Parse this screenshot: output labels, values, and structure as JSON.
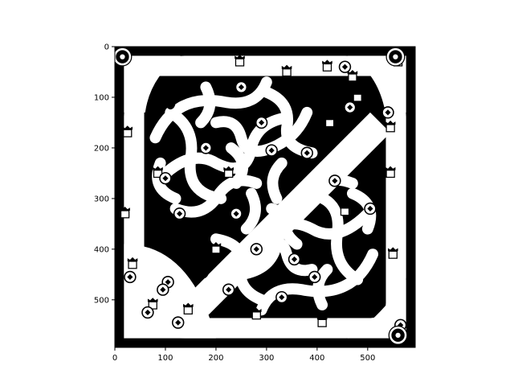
{
  "figure": {
    "type": "image-plot",
    "content": "binary (black/white) top-down game map: square arena with curved pathways and scattered game objects",
    "xlim": [
      0,
      594
    ],
    "ylim": [
      594,
      0
    ],
    "x_ticks": [
      0,
      100,
      200,
      300,
      400,
      500
    ],
    "y_ticks": [
      0,
      100,
      200,
      300,
      400,
      500
    ],
    "x_tick_labels": [
      "0",
      "100",
      "200",
      "300",
      "400",
      "500"
    ],
    "y_tick_labels": [
      "0",
      "100",
      "200",
      "300",
      "400",
      "500"
    ],
    "colors": {
      "background": "#000000",
      "foreground": "#ffffff",
      "axes": "#000000"
    }
  },
  "map_objects": {
    "towers": [
      [
        247,
        30
      ],
      [
        340,
        50
      ],
      [
        420,
        40
      ],
      [
        470,
        60
      ],
      [
        560,
        30
      ],
      [
        25,
        170
      ],
      [
        85,
        250
      ],
      [
        480,
        100
      ],
      [
        425,
        150
      ],
      [
        545,
        160
      ],
      [
        225,
        250
      ],
      [
        545,
        250
      ],
      [
        20,
        330
      ],
      [
        455,
        325
      ],
      [
        35,
        430
      ],
      [
        200,
        400
      ],
      [
        550,
        410
      ],
      [
        75,
        510
      ],
      [
        145,
        520
      ],
      [
        280,
        530
      ],
      [
        410,
        545
      ]
    ],
    "rings": [
      [
        455,
        40
      ],
      [
        465,
        120
      ],
      [
        540,
        130
      ],
      [
        100,
        260
      ],
      [
        128,
        330
      ],
      [
        180,
        200
      ],
      [
        250,
        80
      ],
      [
        290,
        150
      ],
      [
        310,
        205
      ],
      [
        240,
        330
      ],
      [
        380,
        210
      ],
      [
        435,
        265
      ],
      [
        505,
        320
      ],
      [
        280,
        400
      ],
      [
        355,
        420
      ],
      [
        395,
        455
      ],
      [
        225,
        480
      ],
      [
        330,
        495
      ],
      [
        30,
        455
      ],
      [
        105,
        465
      ],
      [
        65,
        525
      ],
      [
        95,
        480
      ],
      [
        125,
        545
      ],
      [
        565,
        550
      ]
    ],
    "flags": [
      [
        555,
        20
      ],
      [
        15,
        20
      ],
      [
        560,
        570
      ]
    ]
  }
}
